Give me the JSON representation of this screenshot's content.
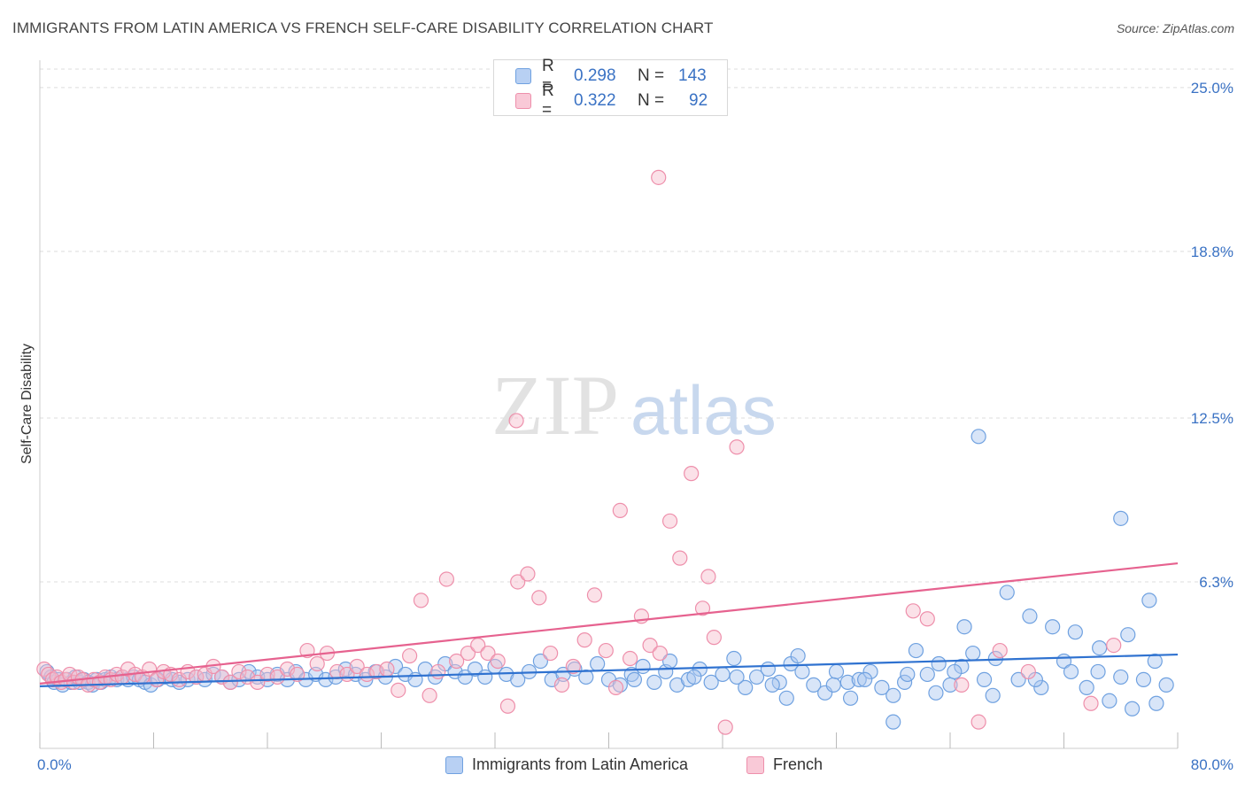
{
  "header": {
    "title": "IMMIGRANTS FROM LATIN AMERICA VS FRENCH SELF-CARE DISABILITY CORRELATION CHART",
    "source": "Source: ZipAtlas.com"
  },
  "watermark": {
    "zip": "ZIP",
    "atlas": "atlas"
  },
  "legend": {
    "rows": [
      {
        "r_label": "R =",
        "r_value": "0.298",
        "n_label": "N =",
        "n_value": "143",
        "color": "#6fa1e0"
      },
      {
        "r_label": "R =",
        "r_value": "0.322",
        "n_label": "N =",
        "n_value": "92",
        "color": "#ee8fab"
      }
    ]
  },
  "bottom_legend": {
    "series_1": "Immigrants from Latin America",
    "series_2": "French"
  },
  "colors": {
    "blue_fill": "#a9c6f0",
    "blue_stroke": "#6fa1e0",
    "blue_line": "#2f72d0",
    "pink_fill": "#f6bccd",
    "pink_stroke": "#ee8fab",
    "pink_line": "#e6628f",
    "axis_text": "#3a72c4",
    "grid": "#dcdcdc"
  },
  "chart_data": {
    "type": "scatter",
    "title": "IMMIGRANTS FROM LATIN AMERICA VS FRENCH SELF-CARE DISABILITY CORRELATION CHART",
    "xlabel": "",
    "ylabel": "Self-Care Disability",
    "xlim": [
      0,
      80
    ],
    "ylim": [
      0,
      25.8
    ],
    "x_tick_labels": [
      "0.0%",
      "80.0%"
    ],
    "y_ticks": [
      6.3,
      12.5,
      18.8,
      25.0
    ],
    "y_tick_labels": [
      "6.3%",
      "12.5%",
      "18.8%",
      "25.0%"
    ],
    "grid": true,
    "legend_position": "top-center",
    "series": [
      {
        "name": "Immigrants from Latin America",
        "r": 0.298,
        "n": 143,
        "trend": {
          "x": [
            0,
            80
          ],
          "y": [
            2.35,
            3.55
          ]
        },
        "points": [
          [
            0.5,
            2.9
          ],
          [
            0.8,
            2.7
          ],
          [
            1.0,
            2.5
          ],
          [
            1.3,
            2.6
          ],
          [
            1.6,
            2.4
          ],
          [
            1.9,
            2.6
          ],
          [
            2.2,
            2.5
          ],
          [
            2.5,
            2.7
          ],
          [
            2.8,
            2.5
          ],
          [
            3.1,
            2.6
          ],
          [
            3.4,
            2.5
          ],
          [
            3.7,
            2.4
          ],
          [
            4.0,
            2.6
          ],
          [
            4.3,
            2.5
          ],
          [
            4.6,
            2.6
          ],
          [
            5.0,
            2.7
          ],
          [
            5.4,
            2.6
          ],
          [
            5.8,
            2.7
          ],
          [
            6.2,
            2.6
          ],
          [
            6.6,
            2.7
          ],
          [
            7.0,
            2.6
          ],
          [
            7.4,
            2.5
          ],
          [
            7.8,
            2.4
          ],
          [
            8.3,
            2.6
          ],
          [
            8.8,
            2.7
          ],
          [
            9.3,
            2.6
          ],
          [
            9.8,
            2.5
          ],
          [
            10.4,
            2.6
          ],
          [
            11.0,
            2.7
          ],
          [
            11.6,
            2.6
          ],
          [
            12.2,
            2.8
          ],
          [
            12.8,
            2.7
          ],
          [
            13.4,
            2.5
          ],
          [
            14.0,
            2.6
          ],
          [
            14.7,
            2.9
          ],
          [
            15.3,
            2.7
          ],
          [
            16.0,
            2.6
          ],
          [
            16.7,
            2.8
          ],
          [
            17.4,
            2.6
          ],
          [
            18.0,
            2.9
          ],
          [
            18.7,
            2.6
          ],
          [
            19.4,
            2.8
          ],
          [
            20.1,
            2.6
          ],
          [
            20.8,
            2.7
          ],
          [
            21.5,
            3.0
          ],
          [
            22.2,
            2.8
          ],
          [
            22.9,
            2.6
          ],
          [
            23.6,
            2.9
          ],
          [
            24.3,
            2.7
          ],
          [
            25.0,
            3.1
          ],
          [
            25.7,
            2.8
          ],
          [
            26.4,
            2.6
          ],
          [
            27.1,
            3.0
          ],
          [
            27.8,
            2.7
          ],
          [
            28.5,
            3.2
          ],
          [
            29.2,
            2.9
          ],
          [
            29.9,
            2.7
          ],
          [
            30.6,
            3.0
          ],
          [
            31.3,
            2.7
          ],
          [
            32.0,
            3.1
          ],
          [
            32.8,
            2.8
          ],
          [
            33.6,
            2.6
          ],
          [
            34.4,
            2.9
          ],
          [
            35.2,
            3.3
          ],
          [
            36.0,
            2.6
          ],
          [
            36.8,
            2.8
          ],
          [
            37.6,
            3.0
          ],
          [
            38.4,
            2.7
          ],
          [
            39.2,
            3.2
          ],
          [
            40.0,
            2.6
          ],
          [
            40.8,
            2.4
          ],
          [
            41.6,
            2.8
          ],
          [
            42.4,
            3.1
          ],
          [
            43.2,
            2.5
          ],
          [
            44.0,
            2.9
          ],
          [
            44.8,
            2.4
          ],
          [
            45.6,
            2.6
          ],
          [
            46.4,
            3.0
          ],
          [
            47.2,
            2.5
          ],
          [
            48.0,
            2.8
          ],
          [
            48.8,
            3.4
          ],
          [
            49.6,
            2.3
          ],
          [
            50.4,
            2.7
          ],
          [
            51.2,
            3.0
          ],
          [
            52.0,
            2.5
          ],
          [
            52.8,
            3.2
          ],
          [
            53.6,
            2.9
          ],
          [
            54.4,
            2.4
          ],
          [
            55.2,
            2.1
          ],
          [
            56.0,
            2.9
          ],
          [
            56.8,
            2.5
          ],
          [
            57.6,
            2.6
          ],
          [
            58.4,
            2.9
          ],
          [
            59.2,
            2.3
          ],
          [
            60.0,
            2.0
          ],
          [
            60.8,
            2.5
          ],
          [
            61.6,
            3.7
          ],
          [
            62.4,
            2.8
          ],
          [
            63.2,
            3.2
          ],
          [
            64.0,
            2.4
          ],
          [
            64.8,
            3.1
          ],
          [
            65.6,
            3.6
          ],
          [
            66.4,
            2.6
          ],
          [
            67.2,
            3.4
          ],
          [
            68.0,
            5.9
          ],
          [
            68.8,
            2.6
          ],
          [
            69.6,
            5.0
          ],
          [
            70.4,
            2.3
          ],
          [
            71.2,
            4.6
          ],
          [
            72.0,
            3.3
          ],
          [
            72.8,
            4.4
          ],
          [
            73.6,
            2.3
          ],
          [
            74.4,
            2.9
          ],
          [
            75.2,
            1.8
          ],
          [
            76.0,
            2.7
          ],
          [
            76.8,
            1.5
          ],
          [
            77.6,
            2.6
          ],
          [
            78.4,
            3.3
          ],
          [
            79.2,
            2.4
          ],
          [
            60.0,
            1.0
          ],
          [
            52.5,
            1.9
          ],
          [
            57.0,
            1.9
          ],
          [
            61.0,
            2.8
          ],
          [
            41.8,
            2.6
          ],
          [
            44.3,
            3.3
          ],
          [
            46.0,
            2.7
          ],
          [
            49.0,
            2.7
          ],
          [
            51.5,
            2.4
          ],
          [
            53.3,
            3.5
          ],
          [
            55.8,
            2.4
          ],
          [
            58.0,
            2.6
          ],
          [
            64.3,
            2.9
          ],
          [
            67.0,
            2.0
          ],
          [
            70.0,
            2.6
          ],
          [
            72.5,
            2.9
          ],
          [
            63.0,
            2.1
          ],
          [
            65.0,
            4.6
          ],
          [
            74.5,
            3.8
          ],
          [
            76.5,
            4.3
          ],
          [
            78.5,
            1.7
          ],
          [
            66.0,
            11.8
          ],
          [
            76.0,
            8.7
          ],
          [
            78.0,
            5.6
          ]
        ]
      },
      {
        "name": "French",
        "r": 0.322,
        "n": 92,
        "trend": {
          "x": [
            0,
            80
          ],
          "y": [
            2.45,
            7.0
          ]
        },
        "points": [
          [
            0.3,
            3.0
          ],
          [
            0.6,
            2.8
          ],
          [
            0.9,
            2.6
          ],
          [
            1.2,
            2.7
          ],
          [
            1.5,
            2.5
          ],
          [
            1.8,
            2.6
          ],
          [
            2.1,
            2.8
          ],
          [
            2.4,
            2.5
          ],
          [
            2.7,
            2.7
          ],
          [
            3.0,
            2.6
          ],
          [
            3.4,
            2.4
          ],
          [
            3.8,
            2.6
          ],
          [
            4.2,
            2.5
          ],
          [
            4.6,
            2.7
          ],
          [
            5.0,
            2.6
          ],
          [
            5.4,
            2.8
          ],
          [
            5.8,
            2.7
          ],
          [
            6.2,
            3.0
          ],
          [
            6.7,
            2.8
          ],
          [
            7.2,
            2.7
          ],
          [
            7.7,
            3.0
          ],
          [
            8.2,
            2.6
          ],
          [
            8.7,
            2.9
          ],
          [
            9.2,
            2.8
          ],
          [
            9.8,
            2.6
          ],
          [
            10.4,
            2.9
          ],
          [
            11.0,
            2.7
          ],
          [
            11.6,
            2.8
          ],
          [
            12.2,
            3.1
          ],
          [
            12.8,
            2.7
          ],
          [
            13.4,
            2.5
          ],
          [
            14.0,
            2.9
          ],
          [
            14.6,
            2.7
          ],
          [
            15.3,
            2.5
          ],
          [
            16.0,
            2.8
          ],
          [
            16.7,
            2.7
          ],
          [
            17.4,
            3.0
          ],
          [
            18.1,
            2.8
          ],
          [
            18.8,
            3.7
          ],
          [
            19.5,
            3.2
          ],
          [
            20.2,
            3.6
          ],
          [
            20.9,
            2.9
          ],
          [
            21.6,
            2.8
          ],
          [
            22.3,
            3.1
          ],
          [
            23.0,
            2.8
          ],
          [
            23.7,
            2.9
          ],
          [
            24.4,
            3.0
          ],
          [
            25.2,
            2.2
          ],
          [
            26.0,
            3.5
          ],
          [
            26.8,
            5.6
          ],
          [
            27.4,
            2.0
          ],
          [
            28.0,
            2.9
          ],
          [
            28.6,
            6.4
          ],
          [
            29.3,
            3.3
          ],
          [
            30.1,
            3.6
          ],
          [
            30.8,
            3.9
          ],
          [
            31.5,
            3.6
          ],
          [
            32.2,
            3.3
          ],
          [
            32.9,
            1.6
          ],
          [
            33.6,
            6.3
          ],
          [
            34.3,
            6.6
          ],
          [
            35.1,
            5.7
          ],
          [
            35.9,
            3.6
          ],
          [
            36.7,
            2.4
          ],
          [
            37.5,
            3.1
          ],
          [
            38.3,
            4.1
          ],
          [
            39.0,
            5.8
          ],
          [
            39.8,
            3.7
          ],
          [
            40.5,
            2.3
          ],
          [
            40.8,
            9.0
          ],
          [
            41.5,
            3.4
          ],
          [
            42.3,
            5.0
          ],
          [
            42.9,
            3.9
          ],
          [
            43.6,
            3.6
          ],
          [
            44.3,
            8.6
          ],
          [
            45.0,
            7.2
          ],
          [
            45.8,
            10.4
          ],
          [
            46.6,
            5.3
          ],
          [
            47.0,
            6.5
          ],
          [
            47.4,
            4.2
          ],
          [
            48.2,
            0.8
          ],
          [
            49.0,
            11.4
          ],
          [
            61.4,
            5.2
          ],
          [
            62.4,
            4.9
          ],
          [
            64.8,
            2.4
          ],
          [
            66.0,
            1.0
          ],
          [
            67.5,
            3.7
          ],
          [
            69.5,
            2.9
          ],
          [
            75.5,
            3.9
          ],
          [
            73.9,
            1.7
          ],
          [
            43.5,
            21.6
          ],
          [
            33.5,
            12.4
          ]
        ]
      }
    ]
  }
}
